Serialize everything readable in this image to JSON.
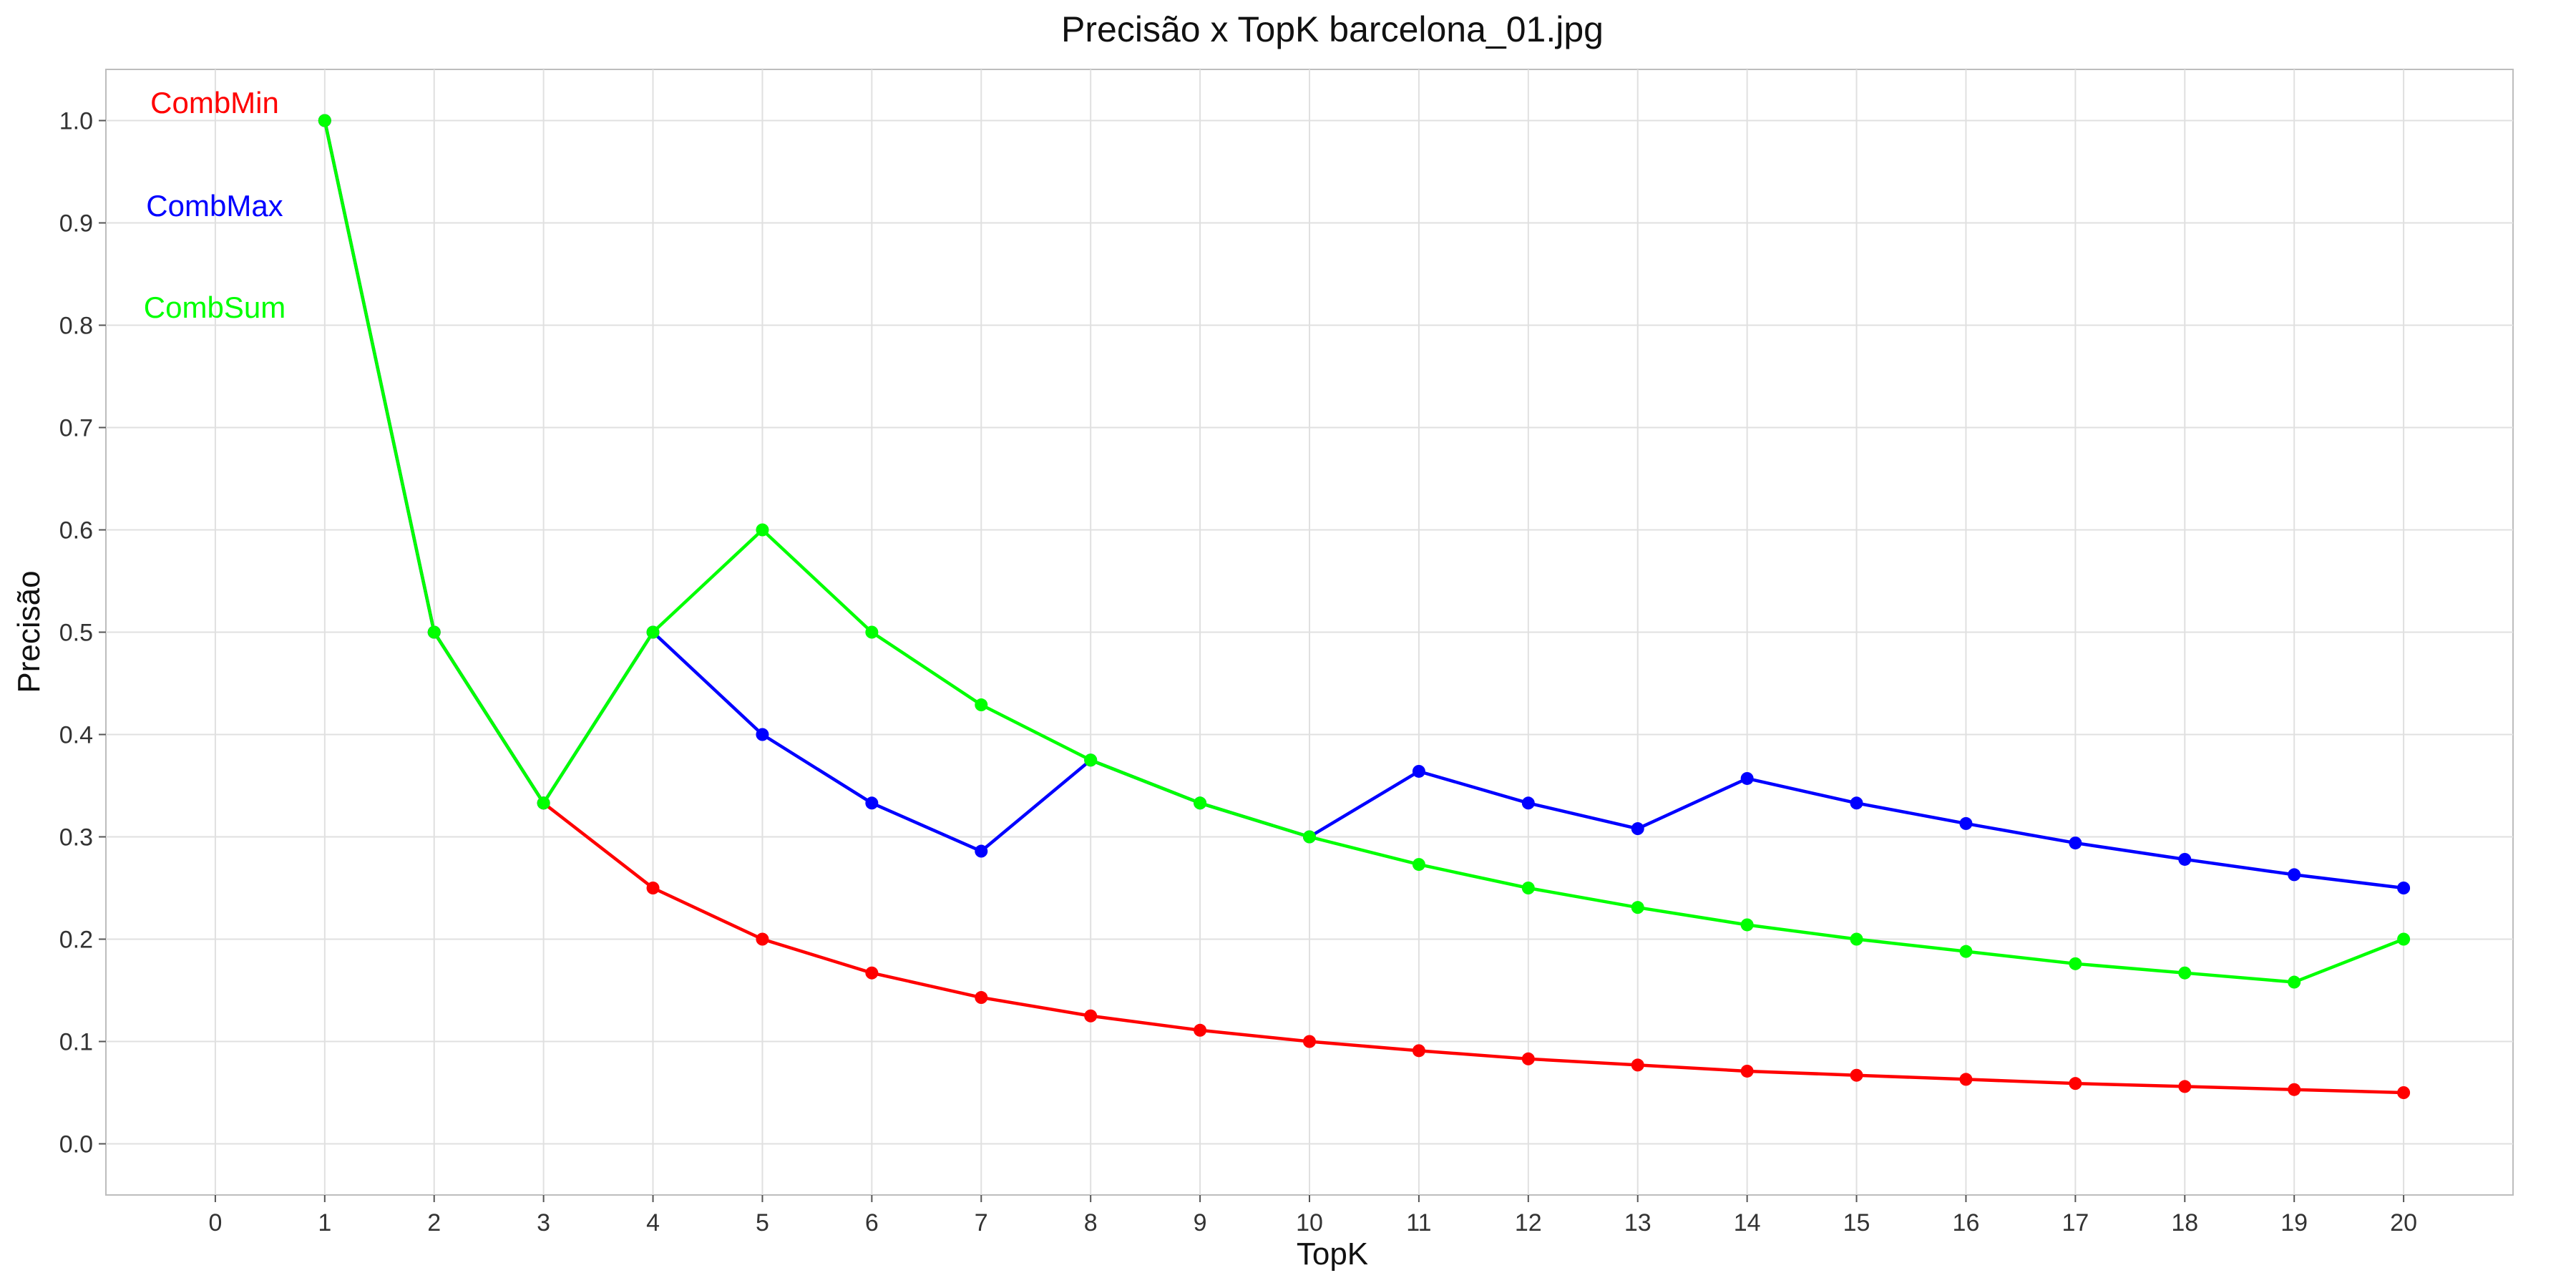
{
  "chart_data": {
    "type": "line",
    "title": "Precisão x TopK barcelona_01.jpg",
    "xlabel": "TopK",
    "ylabel": "Precisão",
    "xlim": [
      -1,
      21
    ],
    "ylim": [
      -0.05,
      1.05
    ],
    "xticks": [
      0,
      1,
      2,
      3,
      4,
      5,
      6,
      7,
      8,
      9,
      10,
      11,
      12,
      13,
      14,
      15,
      16,
      17,
      18,
      19,
      20
    ],
    "yticks": [
      0.0,
      0.1,
      0.2,
      0.3,
      0.4,
      0.5,
      0.6,
      0.7,
      0.8,
      0.9,
      1.0
    ],
    "ytick_labels": [
      "0.0",
      "0.1",
      "0.2",
      "0.3",
      "0.4",
      "0.5",
      "0.6",
      "0.7",
      "0.8",
      "0.9",
      "1.0"
    ],
    "grid": true,
    "legend_position": "top-left",
    "x": [
      1,
      2,
      3,
      4,
      5,
      6,
      7,
      8,
      9,
      10,
      11,
      12,
      13,
      14,
      15,
      16,
      17,
      18,
      19,
      20
    ],
    "series": [
      {
        "name": "CombMin",
        "color": "#ff0000",
        "values": [
          1.0,
          0.5,
          0.333,
          0.25,
          0.2,
          0.167,
          0.143,
          0.125,
          0.111,
          0.1,
          0.091,
          0.083,
          0.077,
          0.071,
          0.067,
          0.063,
          0.059,
          0.056,
          0.053,
          0.05
        ]
      },
      {
        "name": "CombMax",
        "color": "#0000ff",
        "values": [
          1.0,
          0.5,
          0.333,
          0.5,
          0.4,
          0.333,
          0.286,
          0.375,
          0.333,
          0.3,
          0.364,
          0.333,
          0.308,
          0.357,
          0.333,
          0.313,
          0.294,
          0.278,
          0.263,
          0.25
        ]
      },
      {
        "name": "CombSum",
        "color": "#00ff00",
        "values": [
          1.0,
          0.5,
          0.333,
          0.5,
          0.6,
          0.5,
          0.429,
          0.375,
          0.333,
          0.3,
          0.273,
          0.25,
          0.231,
          0.214,
          0.2,
          0.188,
          0.176,
          0.167,
          0.158,
          0.2
        ]
      }
    ]
  }
}
